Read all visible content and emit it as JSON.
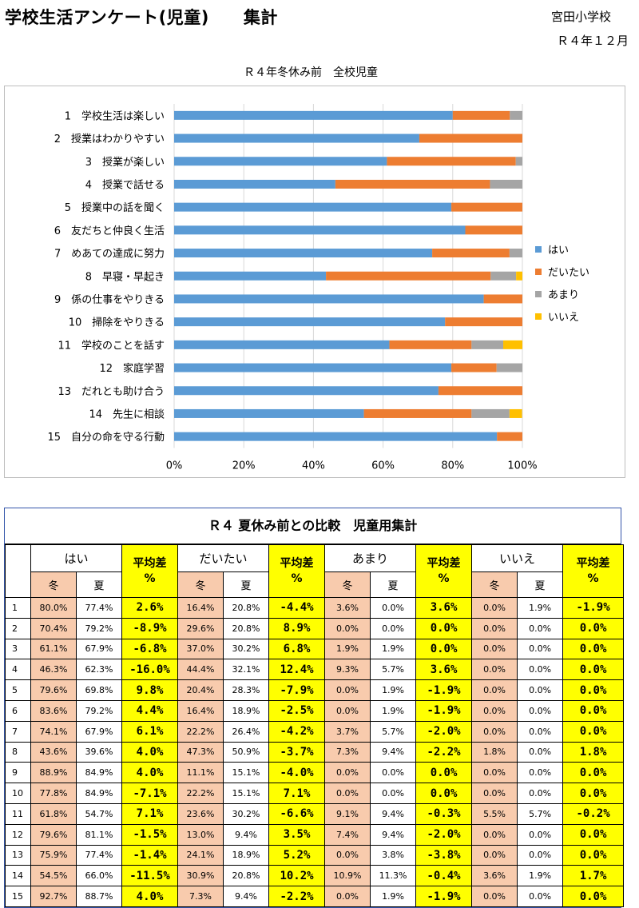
{
  "header": {
    "title": "学校生活アンケート(児童)　　集計",
    "school": "宮田小学校",
    "date": "Ｒ４年１２月"
  },
  "chart_data": {
    "type": "bar",
    "stacked": "percent",
    "orientation": "horizontal",
    "title": "Ｒ４年冬休み前　全校児童",
    "categories": [
      "1　学校生活は楽しい",
      "2　授業はわかりやすい",
      "3　授業が楽しい",
      "4　授業で話せる",
      "5　授業中の話を聞く",
      "6　友だちと仲良く生活",
      "7　めあての達成に努力",
      "8　早寝・早起き",
      "9　係の仕事をやりきる",
      "10　掃除をやりきる",
      "11　学校のことを話す",
      "12　家庭学習",
      "13　だれとも助け合う",
      "14　先生に相談",
      "15　自分の命を守る行動"
    ],
    "series": [
      {
        "name": "はい",
        "color": "#5b9bd5",
        "values": [
          80.0,
          70.4,
          61.1,
          46.3,
          79.6,
          83.6,
          74.1,
          43.6,
          88.9,
          77.8,
          61.8,
          79.6,
          75.9,
          54.5,
          92.7
        ]
      },
      {
        "name": "だいたい",
        "color": "#ed7d31",
        "values": [
          16.4,
          29.6,
          37.0,
          44.4,
          20.4,
          16.4,
          22.2,
          47.3,
          11.1,
          22.2,
          23.6,
          13.0,
          24.1,
          30.9,
          7.3
        ]
      },
      {
        "name": "あまり",
        "color": "#a5a5a5",
        "values": [
          3.6,
          0.0,
          1.9,
          9.3,
          0.0,
          0.0,
          3.7,
          7.3,
          0.0,
          0.0,
          9.1,
          7.4,
          0.0,
          10.9,
          0.0
        ]
      },
      {
        "name": "いいえ",
        "color": "#ffc000",
        "values": [
          0.0,
          0.0,
          0.0,
          0.0,
          0.0,
          0.0,
          0.0,
          1.8,
          0.0,
          0.0,
          5.5,
          0.0,
          0.0,
          3.6,
          0.0
        ]
      }
    ],
    "x_ticks": [
      "0%",
      "20%",
      "40%",
      "60%",
      "80%",
      "100%"
    ],
    "xlim": [
      0,
      100
    ],
    "grid": true,
    "legend": "right"
  },
  "table": {
    "title": "Ｒ４ 夏休み前との比較　児童用集計",
    "groups": [
      "はい",
      "だいたい",
      "あまり",
      "いいえ"
    ],
    "diff_label": "平均差",
    "diff_unit": "%",
    "winter": "冬",
    "summer": "夏",
    "rows": [
      {
        "n": "1",
        "v": [
          "80.0%",
          "77.4%",
          "2.6%",
          "16.4%",
          "20.8%",
          "-4.4%",
          "3.6%",
          "0.0%",
          "3.6%",
          "0.0%",
          "1.9%",
          "-1.9%"
        ]
      },
      {
        "n": "2",
        "v": [
          "70.4%",
          "79.2%",
          "-8.9%",
          "29.6%",
          "20.8%",
          "8.9%",
          "0.0%",
          "0.0%",
          "0.0%",
          "0.0%",
          "0.0%",
          "0.0%"
        ]
      },
      {
        "n": "3",
        "v": [
          "61.1%",
          "67.9%",
          "-6.8%",
          "37.0%",
          "30.2%",
          "6.8%",
          "1.9%",
          "1.9%",
          "0.0%",
          "0.0%",
          "0.0%",
          "0.0%"
        ]
      },
      {
        "n": "4",
        "v": [
          "46.3%",
          "62.3%",
          "-16.0%",
          "44.4%",
          "32.1%",
          "12.4%",
          "9.3%",
          "5.7%",
          "3.6%",
          "0.0%",
          "0.0%",
          "0.0%"
        ]
      },
      {
        "n": "5",
        "v": [
          "79.6%",
          "69.8%",
          "9.8%",
          "20.4%",
          "28.3%",
          "-7.9%",
          "0.0%",
          "1.9%",
          "-1.9%",
          "0.0%",
          "0.0%",
          "0.0%"
        ]
      },
      {
        "n": "6",
        "v": [
          "83.6%",
          "79.2%",
          "4.4%",
          "16.4%",
          "18.9%",
          "-2.5%",
          "0.0%",
          "1.9%",
          "-1.9%",
          "0.0%",
          "0.0%",
          "0.0%"
        ]
      },
      {
        "n": "7",
        "v": [
          "74.1%",
          "67.9%",
          "6.1%",
          "22.2%",
          "26.4%",
          "-4.2%",
          "3.7%",
          "5.7%",
          "-2.0%",
          "0.0%",
          "0.0%",
          "0.0%"
        ]
      },
      {
        "n": "8",
        "v": [
          "43.6%",
          "39.6%",
          "4.0%",
          "47.3%",
          "50.9%",
          "-3.7%",
          "7.3%",
          "9.4%",
          "-2.2%",
          "1.8%",
          "0.0%",
          "1.8%"
        ]
      },
      {
        "n": "9",
        "v": [
          "88.9%",
          "84.9%",
          "4.0%",
          "11.1%",
          "15.1%",
          "-4.0%",
          "0.0%",
          "0.0%",
          "0.0%",
          "0.0%",
          "0.0%",
          "0.0%"
        ]
      },
      {
        "n": "10",
        "v": [
          "77.8%",
          "84.9%",
          "-7.1%",
          "22.2%",
          "15.1%",
          "7.1%",
          "0.0%",
          "0.0%",
          "0.0%",
          "0.0%",
          "0.0%",
          "0.0%"
        ]
      },
      {
        "n": "11",
        "v": [
          "61.8%",
          "54.7%",
          "7.1%",
          "23.6%",
          "30.2%",
          "-6.6%",
          "9.1%",
          "9.4%",
          "-0.3%",
          "5.5%",
          "5.7%",
          "-0.2%"
        ]
      },
      {
        "n": "12",
        "v": [
          "79.6%",
          "81.1%",
          "-1.5%",
          "13.0%",
          "9.4%",
          "3.5%",
          "7.4%",
          "9.4%",
          "-2.0%",
          "0.0%",
          "0.0%",
          "0.0%"
        ]
      },
      {
        "n": "13",
        "v": [
          "75.9%",
          "77.4%",
          "-1.4%",
          "24.1%",
          "18.9%",
          "5.2%",
          "0.0%",
          "3.8%",
          "-3.8%",
          "0.0%",
          "0.0%",
          "0.0%"
        ]
      },
      {
        "n": "14",
        "v": [
          "54.5%",
          "66.0%",
          "-11.5%",
          "30.9%",
          "20.8%",
          "10.2%",
          "10.9%",
          "11.3%",
          "-0.4%",
          "3.6%",
          "1.9%",
          "1.7%"
        ]
      },
      {
        "n": "15",
        "v": [
          "92.7%",
          "88.7%",
          "4.0%",
          "7.3%",
          "9.4%",
          "-2.2%",
          "0.0%",
          "1.9%",
          "-1.9%",
          "0.0%",
          "0.0%",
          "0.0%"
        ]
      }
    ]
  }
}
